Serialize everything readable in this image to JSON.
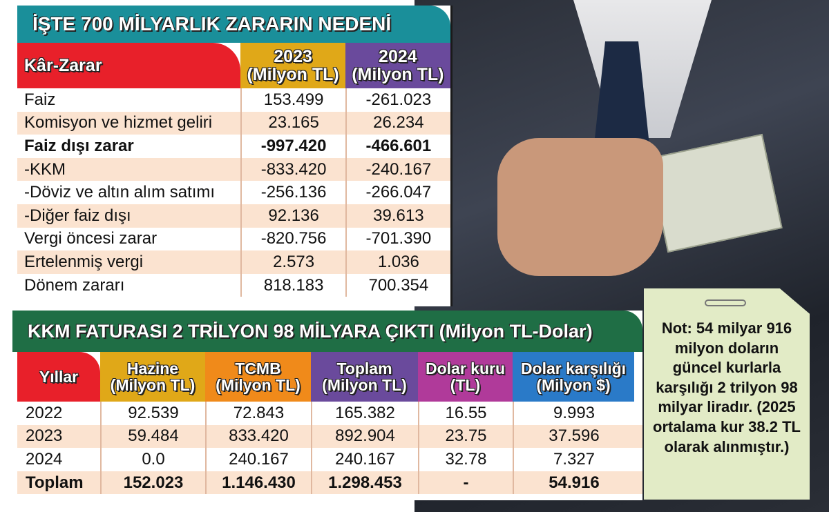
{
  "table1": {
    "title": "İŞTE 700 MİLYARLIK ZARARIN NEDENİ",
    "headers": [
      "Kâr-Zarar",
      "2023\n(Milyon TL)",
      "2024\n(Milyon TL)"
    ],
    "header_colors": [
      "#e8202a",
      "#e0a818",
      "#6a4a9c"
    ],
    "rows": [
      {
        "label": "Faiz",
        "v2023": "153.499",
        "v2024": "-261.023",
        "bold": false
      },
      {
        "label": "Komisyon ve hizmet geliri",
        "v2023": "23.165",
        "v2024": "26.234",
        "bold": false
      },
      {
        "label": "Faiz dışı zarar",
        "v2023": "-997.420",
        "v2024": "-466.601",
        "bold": true
      },
      {
        "label": "-KKM",
        "v2023": "-833.420",
        "v2024": "-240.167",
        "bold": false
      },
      {
        "label": "-Döviz ve altın alım satımı",
        "v2023": "-256.136",
        "v2024": "-266.047",
        "bold": false
      },
      {
        "label": "-Diğer faiz dışı",
        "v2023": "92.136",
        "v2024": "39.613",
        "bold": false
      },
      {
        "label": "Vergi öncesi zarar",
        "v2023": "-820.756",
        "v2024": "-701.390",
        "bold": false
      },
      {
        "label": "Ertelenmiş vergi",
        "v2023": "2.573",
        "v2024": "1.036",
        "bold": false
      },
      {
        "label": "Dönem zararı",
        "v2023": "818.183",
        "v2024": "700.354",
        "bold": false
      }
    ]
  },
  "table2": {
    "title": "KKM FATURASI 2 TRİLYON 98 MİLYARA ÇIKTI (Milyon TL-Dolar)",
    "headers": [
      "Yıllar",
      "Hazine\n(Milyon TL)",
      "TCMB\n(Milyon TL)",
      "Toplam\n(Milyon TL)",
      "Dolar kuru\n(TL)",
      "Dolar karşılığı\n(Milyon $)"
    ],
    "header_colors": [
      "#e8202a",
      "#e0a818",
      "#f08a1a",
      "#6a4a9c",
      "#b03a9a",
      "#2a7ac8"
    ],
    "rows": [
      [
        "2022",
        "92.539",
        "72.843",
        "165.382",
        "16.55",
        "9.993"
      ],
      [
        "2023",
        "59.484",
        "833.420",
        "892.904",
        "23.75",
        "37.596"
      ],
      [
        "2024",
        "0.0",
        "240.167",
        "240.167",
        "32.78",
        "7.327"
      ],
      [
        "Toplam",
        "152.023",
        "1.146.430",
        "1.298.453",
        "-",
        "54.916"
      ]
    ]
  },
  "note": "Not: 54 milyar 916 milyon doların güncel kurlarla karşılığı 2 trilyon 98 milyar liradır. (2025 ortalama kur 38.2 TL olarak alınmıştır.)"
}
